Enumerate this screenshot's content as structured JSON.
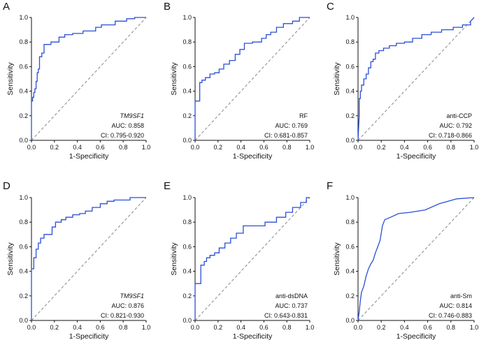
{
  "figure_title": "",
  "chart_data": [
    {
      "type": "line",
      "panel_label": "A",
      "title": "",
      "xlabel": "1-Specificity",
      "ylabel": "Sensitivity",
      "xlim": [
        0,
        1
      ],
      "ylim": [
        0,
        1
      ],
      "x_ticks": [
        "0.0",
        "0.2",
        "0.4",
        "0.6",
        "0.8",
        "1.0"
      ],
      "y_ticks": [
        "0.0",
        "0.2",
        "0.4",
        "0.6",
        "0.8",
        "1.0"
      ],
      "marker_name": "TM9SF1",
      "marker_italic": true,
      "auc_text": "AUC: 0.858",
      "ci_text": "CI: 0.795-0.920",
      "line_color": "#2b4fd6",
      "diagonal_color": "#888888",
      "series": [
        {
          "name": "TM9SF1",
          "x": [
            0,
            0,
            0.01,
            0.01,
            0.02,
            0.02,
            0.03,
            0.03,
            0.04,
            0.04,
            0.05,
            0.05,
            0.06,
            0.06,
            0.07,
            0.07,
            0.09,
            0.09,
            0.11,
            0.11,
            0.17,
            0.17,
            0.24,
            0.24,
            0.29,
            0.29,
            0.36,
            0.36,
            0.45,
            0.45,
            0.56,
            0.56,
            0.61,
            0.61,
            0.73,
            0.73,
            0.83,
            0.83,
            0.9,
            0.9,
            1
          ],
          "y": [
            0,
            0.32,
            0.32,
            0.35,
            0.35,
            0.39,
            0.39,
            0.42,
            0.42,
            0.48,
            0.48,
            0.55,
            0.55,
            0.58,
            0.58,
            0.68,
            0.68,
            0.71,
            0.71,
            0.78,
            0.78,
            0.8,
            0.8,
            0.84,
            0.84,
            0.86,
            0.86,
            0.87,
            0.87,
            0.89,
            0.89,
            0.92,
            0.92,
            0.94,
            0.94,
            0.97,
            0.97,
            0.99,
            0.99,
            1,
            1
          ]
        }
      ]
    },
    {
      "type": "line",
      "panel_label": "B",
      "title": "",
      "xlabel": "1-Specificity",
      "ylabel": "Sensitivity",
      "xlim": [
        0,
        1
      ],
      "ylim": [
        0,
        1
      ],
      "x_ticks": [
        "0.0",
        "0.2",
        "0.4",
        "0.6",
        "0.8",
        "1.0"
      ],
      "y_ticks": [
        "0.0",
        "0.2",
        "0.4",
        "0.6",
        "0.8",
        "1.0"
      ],
      "marker_name": "RF",
      "marker_italic": false,
      "auc_text": "AUC: 0.769",
      "ci_text": "CI: 0.681-0.857",
      "line_color": "#2b4fd6",
      "diagonal_color": "#888888",
      "series": [
        {
          "name": "RF",
          "x": [
            0,
            0,
            0.04,
            0.04,
            0.06,
            0.06,
            0.09,
            0.09,
            0.13,
            0.13,
            0.17,
            0.17,
            0.21,
            0.21,
            0.25,
            0.25,
            0.3,
            0.3,
            0.35,
            0.35,
            0.39,
            0.39,
            0.43,
            0.43,
            0.5,
            0.5,
            0.58,
            0.58,
            0.62,
            0.62,
            0.66,
            0.66,
            0.71,
            0.71,
            0.77,
            0.77,
            0.85,
            0.85,
            0.91,
            0.91,
            1
          ],
          "y": [
            0,
            0.32,
            0.32,
            0.47,
            0.47,
            0.49,
            0.49,
            0.51,
            0.51,
            0.54,
            0.54,
            0.55,
            0.55,
            0.58,
            0.58,
            0.62,
            0.62,
            0.65,
            0.65,
            0.7,
            0.7,
            0.74,
            0.74,
            0.79,
            0.79,
            0.8,
            0.8,
            0.83,
            0.83,
            0.86,
            0.86,
            0.88,
            0.88,
            0.92,
            0.92,
            0.95,
            0.95,
            0.97,
            0.97,
            1,
            1
          ]
        }
      ]
    },
    {
      "type": "line",
      "panel_label": "C",
      "title": "",
      "xlabel": "1-Specificity",
      "ylabel": "Sensitivity",
      "xlim": [
        0,
        1
      ],
      "ylim": [
        0,
        1
      ],
      "x_ticks": [
        "0.0",
        "0.2",
        "0.4",
        "0.6",
        "0.8",
        "1.0"
      ],
      "y_ticks": [
        "0.0",
        "0.2",
        "0.4",
        "0.6",
        "0.8",
        "1.0"
      ],
      "marker_name": "anti-CCP",
      "marker_italic": false,
      "auc_text": "AUC: 0.792",
      "ci_text": "CI: 0.718-0.866",
      "line_color": "#2b4fd6",
      "diagonal_color": "#888888",
      "series": [
        {
          "name": "anti-CCP",
          "x": [
            0,
            0.01,
            0.01,
            0.02,
            0.02,
            0.03,
            0.03,
            0.05,
            0.05,
            0.07,
            0.07,
            0.09,
            0.09,
            0.11,
            0.11,
            0.13,
            0.13,
            0.15,
            0.15,
            0.18,
            0.18,
            0.22,
            0.22,
            0.27,
            0.27,
            0.33,
            0.33,
            0.4,
            0.4,
            0.47,
            0.47,
            0.55,
            0.55,
            0.63,
            0.63,
            0.72,
            0.72,
            0.82,
            0.82,
            0.9,
            0.9,
            0.97,
            0.97,
            1
          ],
          "y": [
            0,
            0.2,
            0.34,
            0.34,
            0.4,
            0.4,
            0.45,
            0.45,
            0.5,
            0.5,
            0.54,
            0.54,
            0.59,
            0.59,
            0.64,
            0.64,
            0.66,
            0.66,
            0.71,
            0.71,
            0.73,
            0.73,
            0.75,
            0.75,
            0.77,
            0.77,
            0.79,
            0.79,
            0.8,
            0.8,
            0.83,
            0.83,
            0.86,
            0.86,
            0.88,
            0.88,
            0.9,
            0.9,
            0.92,
            0.92,
            0.94,
            0.94,
            0.97,
            1
          ]
        }
      ]
    },
    {
      "type": "line",
      "panel_label": "D",
      "title": "",
      "xlabel": "1-Specificity",
      "ylabel": "Sensitivity",
      "xlim": [
        0,
        1
      ],
      "ylim": [
        0,
        1
      ],
      "x_ticks": [
        "0.0",
        "0.2",
        "0.4",
        "0.6",
        "0.8",
        "1.0"
      ],
      "y_ticks": [
        "0.0",
        "0.2",
        "0.4",
        "0.6",
        "0.8",
        "1.0"
      ],
      "marker_name": "TM9SF1",
      "marker_italic": true,
      "auc_text": "AUC: 0.876",
      "ci_text": "CI: 0.821-0.930",
      "line_color": "#2b4fd6",
      "diagonal_color": "#888888",
      "series": [
        {
          "name": "TM9SF1",
          "x": [
            0,
            0,
            0.02,
            0.02,
            0.04,
            0.04,
            0.06,
            0.06,
            0.08,
            0.08,
            0.11,
            0.11,
            0.18,
            0.18,
            0.21,
            0.21,
            0.26,
            0.26,
            0.3,
            0.3,
            0.36,
            0.36,
            0.42,
            0.42,
            0.47,
            0.47,
            0.53,
            0.53,
            0.6,
            0.6,
            0.66,
            0.66,
            0.72,
            0.72,
            0.86,
            0.86,
            1
          ],
          "y": [
            0,
            0.42,
            0.42,
            0.51,
            0.51,
            0.58,
            0.58,
            0.63,
            0.63,
            0.67,
            0.67,
            0.7,
            0.7,
            0.76,
            0.76,
            0.8,
            0.8,
            0.82,
            0.82,
            0.84,
            0.84,
            0.86,
            0.86,
            0.87,
            0.87,
            0.89,
            0.89,
            0.92,
            0.92,
            0.95,
            0.95,
            0.97,
            0.97,
            0.98,
            0.98,
            1,
            1
          ]
        }
      ]
    },
    {
      "type": "line",
      "panel_label": "E",
      "title": "",
      "xlabel": "1-Specificity",
      "ylabel": "Sensitivity",
      "xlim": [
        0,
        1
      ],
      "ylim": [
        0,
        1
      ],
      "x_ticks": [
        "0.0",
        "0.2",
        "0.4",
        "0.6",
        "0.8",
        "1.0"
      ],
      "y_ticks": [
        "0.0",
        "0.2",
        "0.4",
        "0.6",
        "0.8",
        "1.0"
      ],
      "marker_name": "anti-dsDNA",
      "marker_italic": false,
      "auc_text": "AUC: 0.737",
      "ci_text": "CI: 0.643-0.831",
      "line_color": "#2b4fd6",
      "diagonal_color": "#888888",
      "series": [
        {
          "name": "anti-dsDNA",
          "x": [
            0,
            0,
            0.05,
            0.05,
            0.08,
            0.08,
            0.1,
            0.1,
            0.13,
            0.13,
            0.17,
            0.17,
            0.21,
            0.21,
            0.26,
            0.26,
            0.31,
            0.31,
            0.36,
            0.36,
            0.42,
            0.42,
            0.61,
            0.61,
            0.71,
            0.71,
            0.79,
            0.79,
            0.85,
            0.85,
            0.92,
            0.92,
            0.97,
            0.97,
            1
          ],
          "y": [
            0,
            0.3,
            0.3,
            0.45,
            0.45,
            0.48,
            0.48,
            0.51,
            0.51,
            0.53,
            0.53,
            0.55,
            0.55,
            0.59,
            0.59,
            0.63,
            0.63,
            0.67,
            0.67,
            0.71,
            0.71,
            0.77,
            0.77,
            0.8,
            0.8,
            0.84,
            0.84,
            0.88,
            0.88,
            0.92,
            0.92,
            0.96,
            0.96,
            1,
            1
          ]
        }
      ]
    },
    {
      "type": "line",
      "panel_label": "F",
      "title": "",
      "xlabel": "1-Specificity",
      "ylabel": "Sensitivity",
      "xlim": [
        0,
        1
      ],
      "ylim": [
        0,
        1
      ],
      "x_ticks": [
        "0.0",
        "0.2",
        "0.4",
        "0.6",
        "0.8",
        "1.0"
      ],
      "y_ticks": [
        "0.0",
        "0.2",
        "0.4",
        "0.6",
        "0.8",
        "1.0"
      ],
      "marker_name": "anti-Sm",
      "marker_italic": false,
      "auc_text": "AUC: 0.814",
      "ci_text": "CI: 0.746-0.883",
      "line_color": "#2b4fd6",
      "diagonal_color": "#888888",
      "series": [
        {
          "name": "anti-Sm",
          "x": [
            0,
            0.01,
            0.02,
            0.03,
            0.05,
            0.07,
            0.09,
            0.11,
            0.13,
            0.15,
            0.17,
            0.19,
            0.21,
            0.23,
            0.28,
            0.35,
            0.45,
            0.58,
            0.7,
            0.85,
            1
          ],
          "y": [
            0,
            0.07,
            0.16,
            0.23,
            0.28,
            0.36,
            0.42,
            0.46,
            0.49,
            0.55,
            0.6,
            0.65,
            0.77,
            0.82,
            0.84,
            0.87,
            0.88,
            0.9,
            0.95,
            0.99,
            1
          ]
        }
      ]
    }
  ]
}
